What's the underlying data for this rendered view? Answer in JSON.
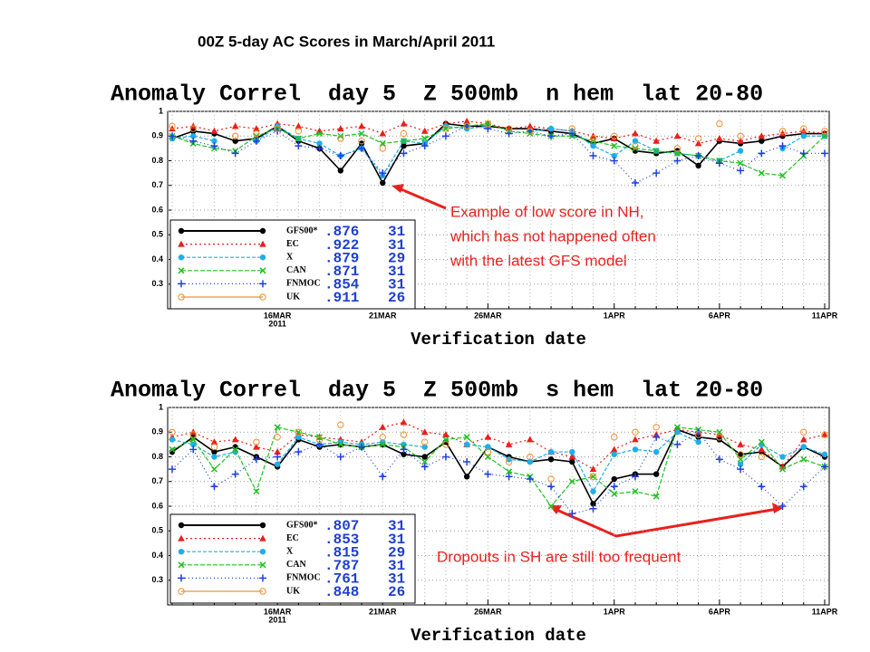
{
  "title": "00Z 5-day AC Scores in March/April 2011",
  "annotations": [
    "Example of low score in NH,",
    "which has not happened often",
    "with the latest GFS model",
    "Dropouts in SH are still too frequent"
  ],
  "chart_data": [
    {
      "type": "line",
      "title": "Anomaly Correl  day 5  Z 500mb  n hem  lat 20-80",
      "xlabel": "Verification date",
      "year": "2011",
      "categories": [
        null,
        null,
        null,
        null,
        null,
        "16MAR",
        null,
        null,
        null,
        null,
        "21MAR",
        null,
        null,
        null,
        null,
        "26MAR",
        null,
        null,
        null,
        null,
        null,
        "1APR",
        null,
        null,
        null,
        null,
        "6APR",
        null,
        null,
        null,
        null,
        "11APR"
      ],
      "ylim": [
        0.2,
        1
      ],
      "yticks": [
        0.3,
        0.4,
        0.5,
        0.6,
        0.7,
        0.8,
        0.9,
        1
      ],
      "grid": true,
      "series": [
        {
          "name": "GFS00*",
          "color": "#000000",
          "marker": "dot",
          "dash": "",
          "score": {
            "value": 0.876,
            "label": ".876"
          },
          "count": 31,
          "values": [
            0.89,
            0.92,
            0.91,
            0.88,
            0.89,
            0.94,
            0.88,
            0.85,
            0.76,
            0.87,
            0.71,
            0.86,
            0.87,
            0.95,
            0.94,
            0.94,
            0.93,
            0.93,
            0.92,
            0.91,
            0.87,
            0.89,
            0.84,
            0.83,
            0.84,
            0.78,
            0.88,
            0.87,
            0.88,
            0.9,
            0.91,
            0.91
          ]
        },
        {
          "name": "EC",
          "color": "#e8201c",
          "marker": "triangle",
          "dash": "2 3",
          "score": {
            "value": 0.922,
            "label": ".922"
          },
          "count": 31,
          "values": [
            0.93,
            0.94,
            0.92,
            0.94,
            0.93,
            0.95,
            0.94,
            0.92,
            0.93,
            0.94,
            0.91,
            0.95,
            0.92,
            0.95,
            0.96,
            0.95,
            0.93,
            0.94,
            0.93,
            0.92,
            0.9,
            0.89,
            0.91,
            0.88,
            0.9,
            0.87,
            0.89,
            0.88,
            0.9,
            0.91,
            0.92,
            0.91
          ]
        },
        {
          "name": "X",
          "color": "#1eaee8",
          "marker": "dot",
          "dash": "4 2",
          "score": {
            "value": 0.879,
            "label": ".879"
          },
          "count": 29,
          "values": [
            0.89,
            0.9,
            0.88,
            null,
            0.88,
            0.94,
            0.89,
            0.87,
            0.82,
            0.85,
            0.74,
            0.88,
            0.87,
            0.94,
            0.93,
            0.94,
            null,
            0.92,
            0.93,
            0.92,
            0.86,
            0.82,
            0.88,
            0.84,
            0.83,
            0.82,
            0.8,
            0.84,
            null,
            0.85,
            0.9,
            0.9
          ]
        },
        {
          "name": "CAN",
          "color": "#22c022",
          "marker": "x",
          "dash": "5 2",
          "score": {
            "value": 0.871,
            "label": ".871"
          },
          "count": 31,
          "values": [
            0.9,
            0.87,
            0.85,
            0.84,
            0.9,
            0.93,
            0.89,
            0.91,
            0.9,
            0.91,
            0.87,
            0.88,
            0.89,
            0.93,
            0.94,
            0.95,
            0.92,
            0.91,
            0.9,
            0.9,
            0.88,
            0.86,
            0.85,
            0.84,
            0.83,
            0.82,
            0.8,
            0.79,
            0.75,
            0.74,
            0.82,
            0.9
          ]
        },
        {
          "name": "FNMOC",
          "color": "#2040e0",
          "marker": "plus",
          "dash": "1 3",
          "score": {
            "value": 0.854,
            "label": ".854"
          },
          "count": 31,
          "values": [
            0.9,
            0.88,
            0.86,
            0.83,
            0.88,
            0.92,
            0.86,
            0.85,
            0.82,
            0.85,
            0.75,
            0.83,
            0.86,
            0.9,
            0.94,
            0.93,
            0.91,
            0.92,
            0.9,
            0.91,
            0.82,
            0.8,
            0.71,
            0.75,
            0.8,
            0.82,
            0.79,
            0.76,
            0.83,
            0.86,
            0.83,
            0.83
          ]
        },
        {
          "name": "UK",
          "color": "#f09030",
          "marker": "circle",
          "dash": "none",
          "score": {
            "value": 0.911,
            "label": ".911"
          },
          "count": 26,
          "values": [
            0.94,
            0.93,
            null,
            0.9,
            0.91,
            0.93,
            0.92,
            null,
            0.89,
            0.88,
            0.85,
            0.91,
            null,
            0.93,
            0.94,
            0.95,
            0.93,
            0.92,
            null,
            0.93,
            0.89,
            0.9,
            0.86,
            null,
            0.85,
            0.89,
            0.95,
            0.9,
            null,
            0.92,
            0.93,
            0.92
          ]
        }
      ]
    },
    {
      "type": "line",
      "title": "Anomaly Correl  day 5  Z 500mb  s hem  lat 20-80",
      "xlabel": "Verification date",
      "year": "2011",
      "categories": [
        null,
        null,
        null,
        null,
        null,
        "16MAR",
        null,
        null,
        null,
        null,
        "21MAR",
        null,
        null,
        null,
        null,
        "26MAR",
        null,
        null,
        null,
        null,
        null,
        "1APR",
        null,
        null,
        null,
        null,
        "6APR",
        null,
        null,
        null,
        null,
        "11APR"
      ],
      "ylim": [
        0.2,
        1
      ],
      "yticks": [
        0.3,
        0.4,
        0.5,
        0.6,
        0.7,
        0.8,
        0.9,
        1
      ],
      "grid": true,
      "series": [
        {
          "name": "GFS00*",
          "color": "#000000",
          "marker": "dot",
          "dash": "",
          "score": {
            "value": 0.807,
            "label": ".807"
          },
          "count": 31,
          "values": [
            0.82,
            0.88,
            0.82,
            0.84,
            0.8,
            0.76,
            0.87,
            0.84,
            0.85,
            0.84,
            0.85,
            0.81,
            0.8,
            0.86,
            0.72,
            0.84,
            0.8,
            0.78,
            0.79,
            0.78,
            0.61,
            0.71,
            0.73,
            0.73,
            0.91,
            0.88,
            0.87,
            0.81,
            0.82,
            0.76,
            0.84,
            0.8
          ]
        },
        {
          "name": "EC",
          "color": "#e8201c",
          "marker": "triangle",
          "dash": "2 3",
          "score": {
            "value": 0.853,
            "label": ".853"
          },
          "count": 31,
          "values": [
            0.88,
            0.9,
            0.86,
            0.87,
            0.84,
            0.82,
            0.89,
            0.88,
            0.87,
            0.86,
            0.92,
            0.94,
            0.9,
            0.89,
            0.85,
            0.88,
            0.85,
            0.87,
            0.82,
            0.8,
            0.75,
            0.83,
            0.87,
            0.89,
            0.91,
            0.9,
            0.89,
            0.85,
            0.83,
            0.76,
            0.87,
            0.89
          ]
        },
        {
          "name": "X",
          "color": "#1eaee8",
          "marker": "dot",
          "dash": "4 2",
          "score": {
            "value": 0.815,
            "label": ".815"
          },
          "count": 29,
          "values": [
            0.87,
            0.85,
            0.8,
            0.82,
            null,
            0.77,
            0.88,
            0.85,
            0.86,
            0.85,
            0.86,
            0.85,
            0.84,
            null,
            0.85,
            0.84,
            0.79,
            0.78,
            0.82,
            0.82,
            0.66,
            0.81,
            0.83,
            0.82,
            0.9,
            0.86,
            null,
            0.77,
            0.85,
            0.8,
            0.84,
            0.81
          ]
        },
        {
          "name": "CAN",
          "color": "#22c022",
          "marker": "x",
          "dash": "5 2",
          "score": {
            "value": 0.787,
            "label": ".787"
          },
          "count": 31,
          "values": [
            0.83,
            0.87,
            0.75,
            0.83,
            0.66,
            0.92,
            0.9,
            0.88,
            0.85,
            0.84,
            0.85,
            0.84,
            0.78,
            0.87,
            0.88,
            0.8,
            0.74,
            0.72,
            0.6,
            0.7,
            0.72,
            0.65,
            0.66,
            0.64,
            0.92,
            0.91,
            0.9,
            0.79,
            0.86,
            0.75,
            0.79,
            0.76
          ]
        },
        {
          "name": "FNMOC",
          "color": "#2040e0",
          "marker": "plus",
          "dash": "1 3",
          "score": {
            "value": 0.761,
            "label": ".761"
          },
          "count": 31,
          "values": [
            0.75,
            0.83,
            0.68,
            0.73,
            0.79,
            0.8,
            0.82,
            0.85,
            0.8,
            0.84,
            0.72,
            0.83,
            0.76,
            0.8,
            0.78,
            0.73,
            0.72,
            0.71,
            0.68,
            0.57,
            0.59,
            0.68,
            0.72,
            0.88,
            0.85,
            0.9,
            0.79,
            0.75,
            0.68,
            0.6,
            0.68,
            0.76
          ]
        },
        {
          "name": "UK",
          "color": "#f09030",
          "marker": "circle",
          "dash": "none",
          "score": {
            "value": 0.848,
            "label": ".848"
          },
          "count": 26,
          "values": [
            0.9,
            0.89,
            0.84,
            null,
            0.86,
            0.88,
            0.9,
            0.87,
            0.93,
            null,
            0.88,
            0.89,
            0.86,
            0.85,
            null,
            0.82,
            0.78,
            0.8,
            0.71,
            null,
            0.72,
            0.88,
            0.9,
            0.92,
            null,
            0.89,
            0.88,
            0.81,
            0.8,
            null,
            0.9,
            0.89
          ]
        }
      ]
    }
  ]
}
